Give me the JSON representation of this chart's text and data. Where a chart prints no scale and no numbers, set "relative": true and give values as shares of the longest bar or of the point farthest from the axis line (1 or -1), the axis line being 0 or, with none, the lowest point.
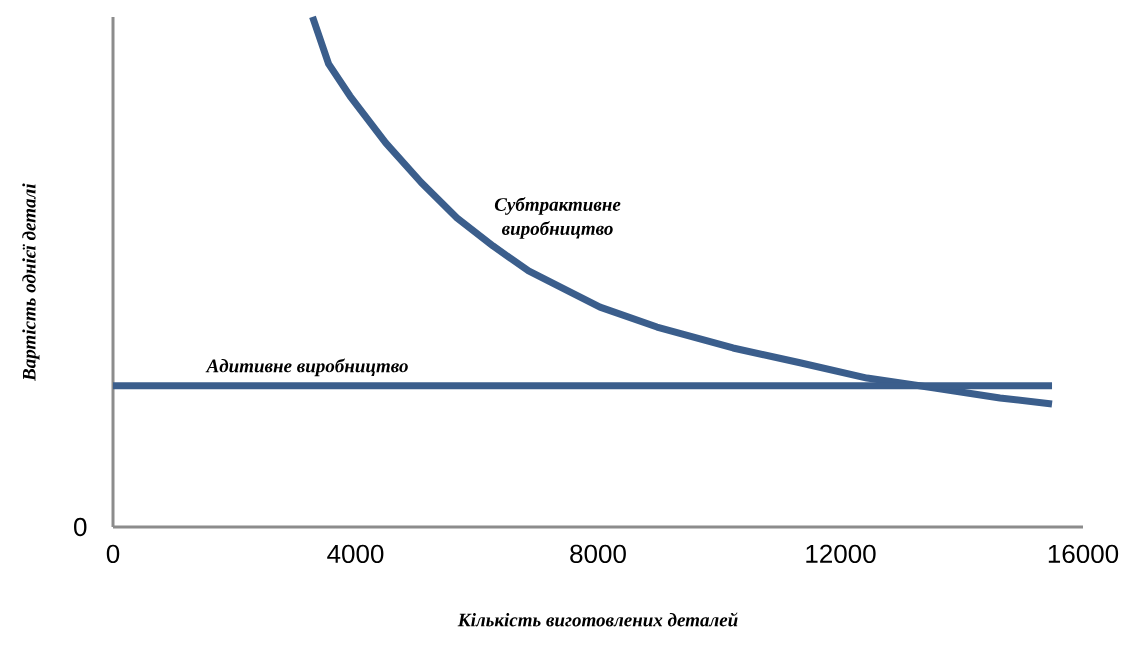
{
  "chart_data": {
    "type": "line",
    "relative": true,
    "xlabel": "Кількість виготовлених деталей",
    "ylabel": "Вартість однієї деталі",
    "xlim": [
      0,
      16000
    ],
    "xticks": [
      0,
      4000,
      8000,
      12000,
      16000
    ],
    "annotations": [
      "0"
    ],
    "series": [
      {
        "name": "Субтрактивне виробництво",
        "color": "#3b5e8c",
        "x": [
          3291,
          3556,
          3909,
          4498,
          5080,
          5674,
          6268,
          6855,
          7439,
          8033,
          8973,
          10227,
          11332,
          12437,
          13526,
          14631,
          15489
        ],
        "values": [
          1.0,
          0.908,
          0.845,
          0.753,
          0.676,
          0.606,
          0.551,
          0.502,
          0.467,
          0.431,
          0.392,
          0.351,
          0.322,
          0.292,
          0.273,
          0.253,
          0.241
        ]
      },
      {
        "name": "Адитивне виробництво",
        "color": "#3b5e8c",
        "x": [
          0,
          15489
        ],
        "values": [
          0.277,
          0.277
        ]
      }
    ],
    "grid": false,
    "marker": "none",
    "line_style": "solid"
  }
}
